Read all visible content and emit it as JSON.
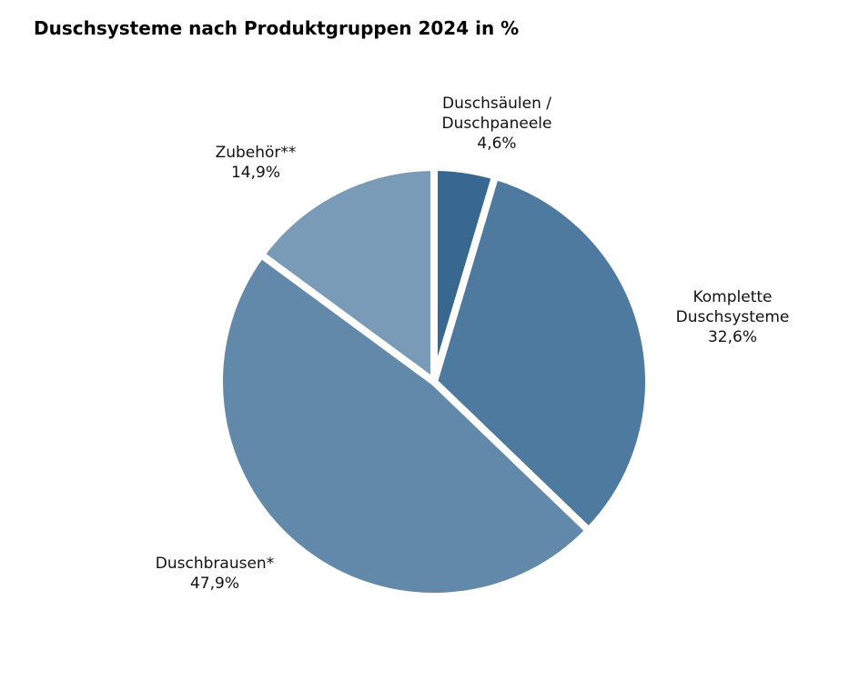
{
  "chart_data": {
    "type": "pie",
    "title": "Duschsysteme nach Produktgruppen 2024 in %",
    "start_angle_deg": 0,
    "direction": "clockwise",
    "slices": [
      {
        "label_lines": [
          "Duschsäulen /",
          "Duschpaneele"
        ],
        "label": "Duschsäulen / Duschpaneele",
        "value": 4.6,
        "value_text": "4,6%",
        "color": "#38678F"
      },
      {
        "label_lines": [
          "Komplette",
          "Duschsysteme"
        ],
        "label": "Komplette Duschsysteme",
        "value": 32.6,
        "value_text": "32,6%",
        "color": "#4D7A9E"
      },
      {
        "label_lines": [
          "Duschbrausen*"
        ],
        "label": "Duschbrausen*",
        "value": 47.9,
        "value_text": "47,9%",
        "color": "#6389AA"
      },
      {
        "label_lines": [
          "Zubehör**"
        ],
        "label": "Zubehör**",
        "value": 14.9,
        "value_text": "14,9%",
        "color": "#7A9BB7"
      }
    ],
    "legend": "none (direct labels)"
  }
}
